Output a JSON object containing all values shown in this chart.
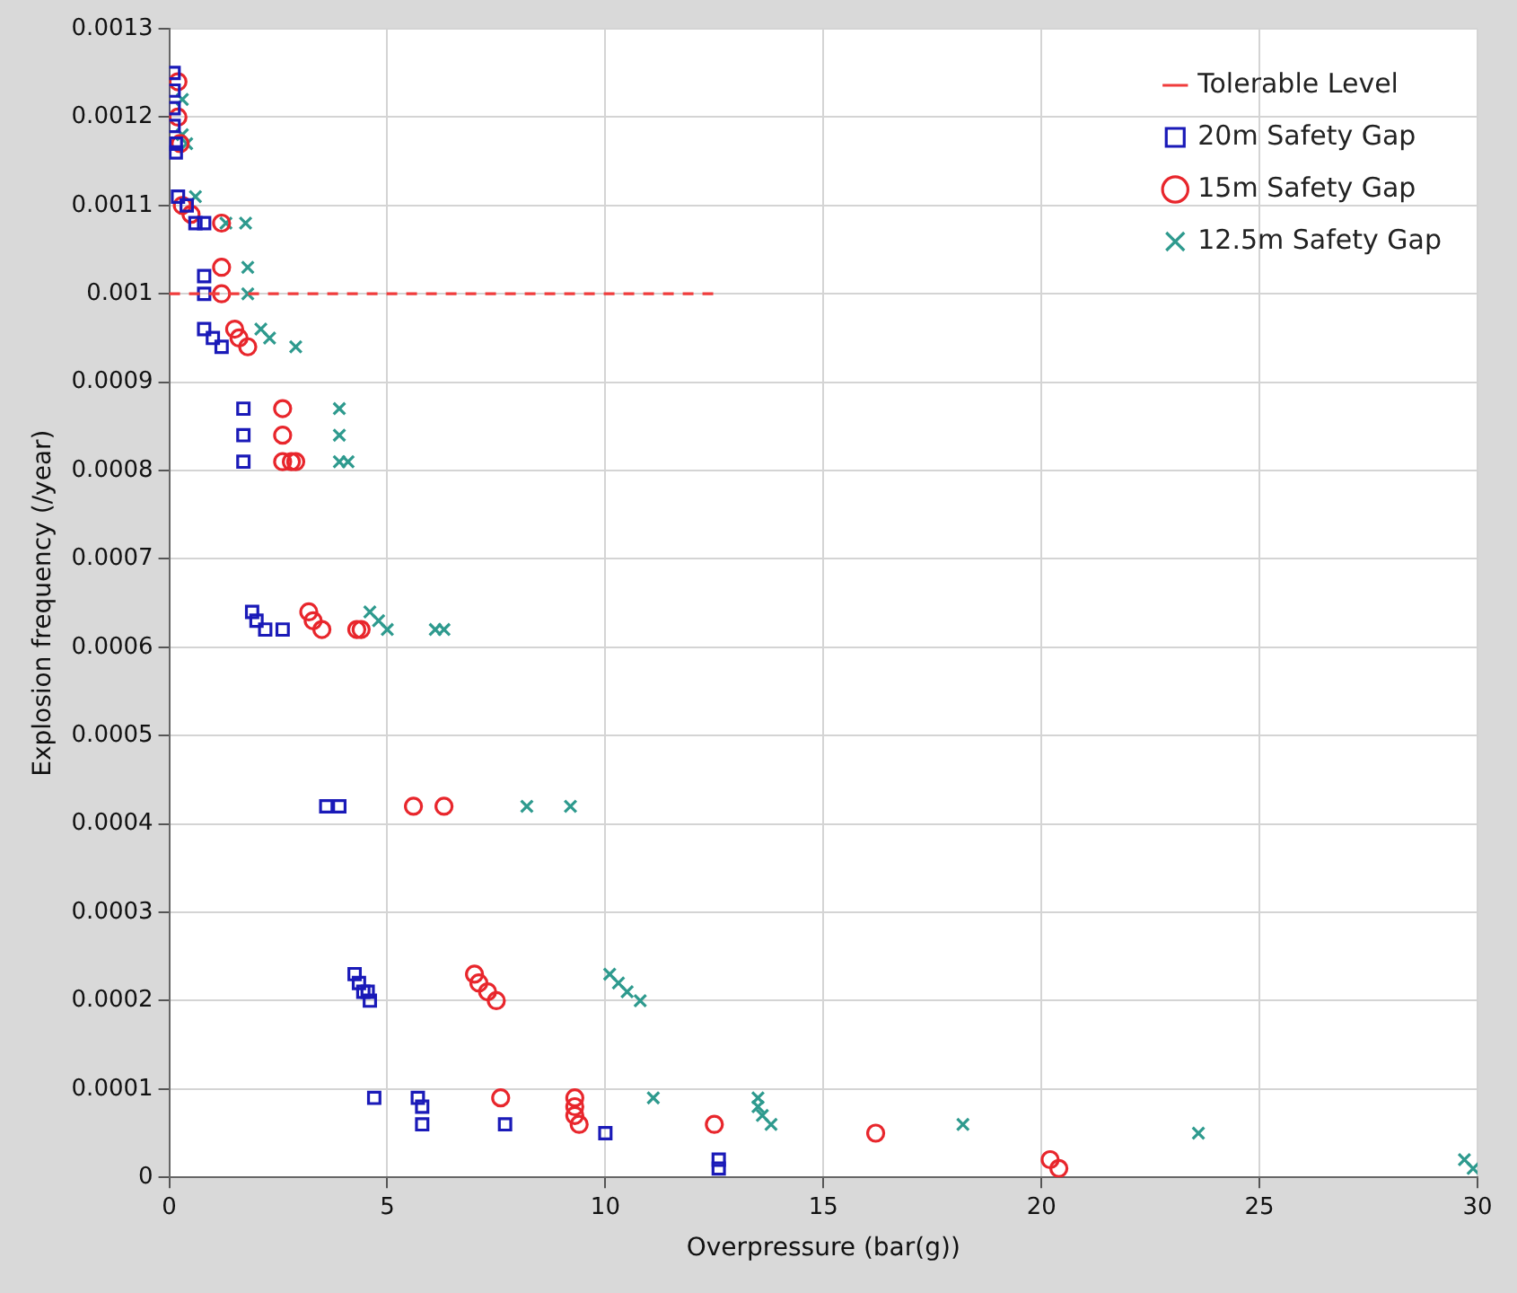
{
  "chart_data": {
    "type": "scatter",
    "xlabel": "Overpressure (bar(g))",
    "ylabel": "Explosion frequency (/year)",
    "xlim": [
      0,
      30
    ],
    "xticks": [
      0,
      5,
      10,
      15,
      20,
      25,
      30
    ],
    "ylim": [
      0,
      0.0013
    ],
    "yticks": [
      0,
      0.0001,
      0.0002,
      0.0003,
      0.0004,
      0.0005,
      0.0006,
      0.0007,
      0.0008,
      0.0009,
      0.001,
      0.0011,
      0.0012,
      0.0013
    ],
    "grid": true,
    "legend": "top right",
    "series": [
      {
        "name": "Tolerable Level",
        "type": "line",
        "color": "#f03c3c",
        "line_style": "dashed",
        "marker": "none",
        "x": [
          0,
          12.5
        ],
        "values": [
          0.001,
          0.001
        ]
      },
      {
        "name": "20m Safety Gap",
        "color": "#1a1ab8",
        "marker": "square",
        "x": [
          0.1,
          0.1,
          0.1,
          0.1,
          0.15,
          0.15,
          0.2,
          0.4,
          0.6,
          0.8,
          0.8,
          0.8,
          0.8,
          1.0,
          1.2,
          1.7,
          1.7,
          1.7,
          1.9,
          2.0,
          2.2,
          2.6,
          3.6,
          3.9,
          4.25,
          4.35,
          4.45,
          4.55,
          4.6,
          4.7,
          5.7,
          5.8,
          5.8,
          7.7,
          10.0,
          12.6,
          12.6
        ],
        "values": [
          0.00125,
          0.00123,
          0.00121,
          0.00119,
          0.00117,
          0.00116,
          0.00111,
          0.0011,
          0.00108,
          0.00108,
          0.00102,
          0.001,
          0.00096,
          0.00095,
          0.00094,
          0.00087,
          0.00084,
          0.00081,
          0.00064,
          0.00063,
          0.00062,
          0.00062,
          0.00042,
          0.00042,
          0.00023,
          0.00022,
          0.00021,
          0.00021,
          0.0002,
          9e-05,
          9e-05,
          8e-05,
          6e-05,
          6e-05,
          5e-05,
          2e-05,
          1e-05
        ]
      },
      {
        "name": "15m Safety Gap",
        "color": "#e8262c",
        "marker": "circle",
        "x": [
          0.2,
          0.2,
          0.25,
          0.3,
          0.5,
          1.2,
          1.2,
          1.2,
          1.5,
          1.6,
          1.8,
          2.6,
          2.6,
          2.6,
          2.8,
          2.9,
          3.2,
          3.3,
          3.5,
          4.3,
          4.4,
          5.6,
          6.3,
          7.0,
          7.1,
          7.3,
          7.5,
          7.6,
          9.3,
          9.3,
          9.3,
          9.4,
          12.5,
          16.2,
          20.2,
          20.4
        ],
        "values": [
          0.00124,
          0.0012,
          0.00117,
          0.0011,
          0.00109,
          0.00108,
          0.00103,
          0.001,
          0.00096,
          0.00095,
          0.00094,
          0.00087,
          0.00084,
          0.00081,
          0.00081,
          0.00081,
          0.00064,
          0.00063,
          0.00062,
          0.00062,
          0.00062,
          0.00042,
          0.00042,
          0.00023,
          0.00022,
          0.00021,
          0.0002,
          9e-05,
          9e-05,
          8e-05,
          7e-05,
          6e-05,
          6e-05,
          5e-05,
          2e-05,
          1e-05
        ]
      },
      {
        "name": "12.5m Safety Gap",
        "color": "#2e9a8e",
        "marker": "cross",
        "x": [
          0.3,
          0.3,
          0.4,
          0.6,
          1.3,
          1.75,
          1.8,
          1.8,
          2.1,
          2.3,
          2.9,
          3.9,
          3.9,
          3.9,
          4.1,
          4.6,
          4.8,
          5.0,
          6.1,
          6.3,
          8.2,
          9.2,
          10.1,
          10.3,
          10.5,
          10.8,
          11.1,
          13.5,
          13.5,
          13.6,
          13.8,
          18.2,
          23.6,
          29.7,
          29.9
        ],
        "values": [
          0.00122,
          0.00118,
          0.00117,
          0.00111,
          0.00108,
          0.00108,
          0.00103,
          0.001,
          0.00096,
          0.00095,
          0.00094,
          0.00087,
          0.00084,
          0.00081,
          0.00081,
          0.00064,
          0.00063,
          0.00062,
          0.00062,
          0.00062,
          0.00042,
          0.00042,
          0.00023,
          0.00022,
          0.00021,
          0.0002,
          9e-05,
          9e-05,
          8e-05,
          7e-05,
          6e-05,
          6e-05,
          5e-05,
          2e-05,
          1e-05
        ]
      }
    ]
  }
}
